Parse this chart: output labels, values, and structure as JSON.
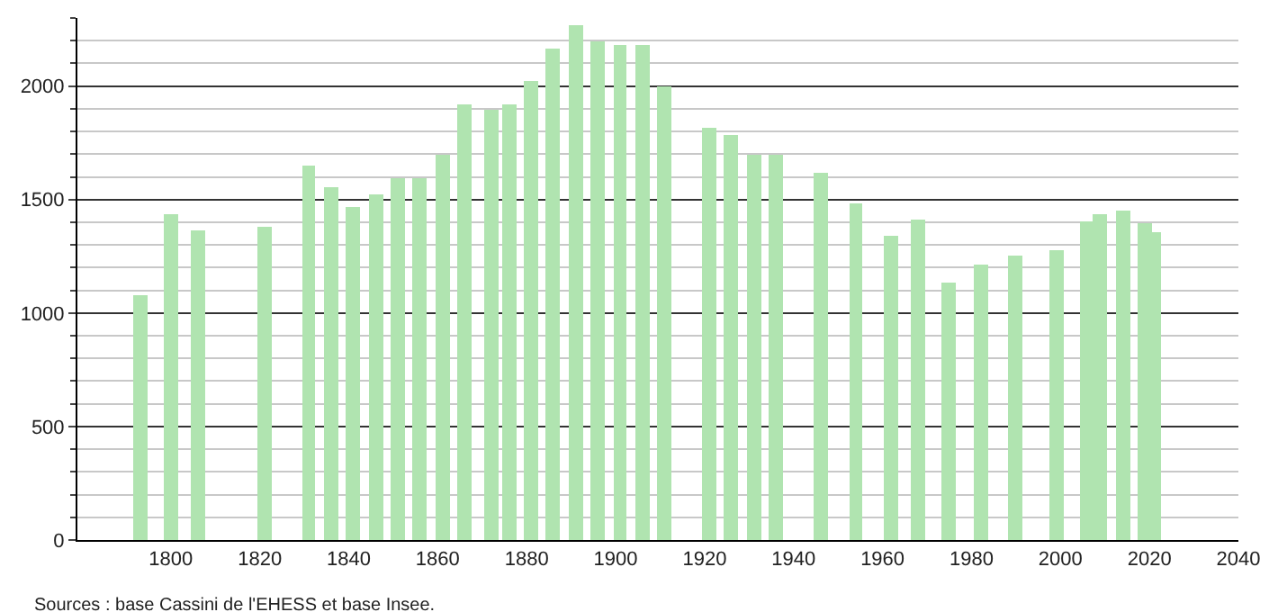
{
  "chart_data": {
    "type": "bar",
    "x": [
      1793,
      1800,
      1806,
      1821,
      1831,
      1836,
      1841,
      1846,
      1851,
      1856,
      1861,
      1866,
      1872,
      1876,
      1881,
      1886,
      1891,
      1896,
      1901,
      1906,
      1911,
      1921,
      1926,
      1931,
      1936,
      1946,
      1954,
      1962,
      1968,
      1975,
      1982,
      1990,
      1999,
      2006,
      2009,
      2014,
      2019,
      2021
    ],
    "values": [
      1081,
      1438,
      1362,
      1383,
      1653,
      1558,
      1470,
      1526,
      1595,
      1595,
      1695,
      1921,
      1897,
      1921,
      2024,
      2162,
      2265,
      2196,
      2185,
      2185,
      2000,
      1820,
      1788,
      1695,
      1695,
      1619,
      1483,
      1340,
      1412,
      1134,
      1213,
      1253,
      1277,
      1407,
      1438,
      1452,
      1396,
      1359
    ],
    "color": "#b0e4b0",
    "xlim": [
      1779,
      2040
    ],
    "xticks": [
      1800,
      1820,
      1840,
      1860,
      1880,
      1900,
      1920,
      1940,
      1960,
      1980,
      2000,
      2020,
      2040
    ],
    "ylim": [
      0,
      2300
    ],
    "yticks": [
      0,
      500,
      1000,
      1500,
      2000
    ],
    "grid": "y",
    "annotations": [
      "Sources : base Cassini de l'EHESS et base Insee."
    ]
  }
}
